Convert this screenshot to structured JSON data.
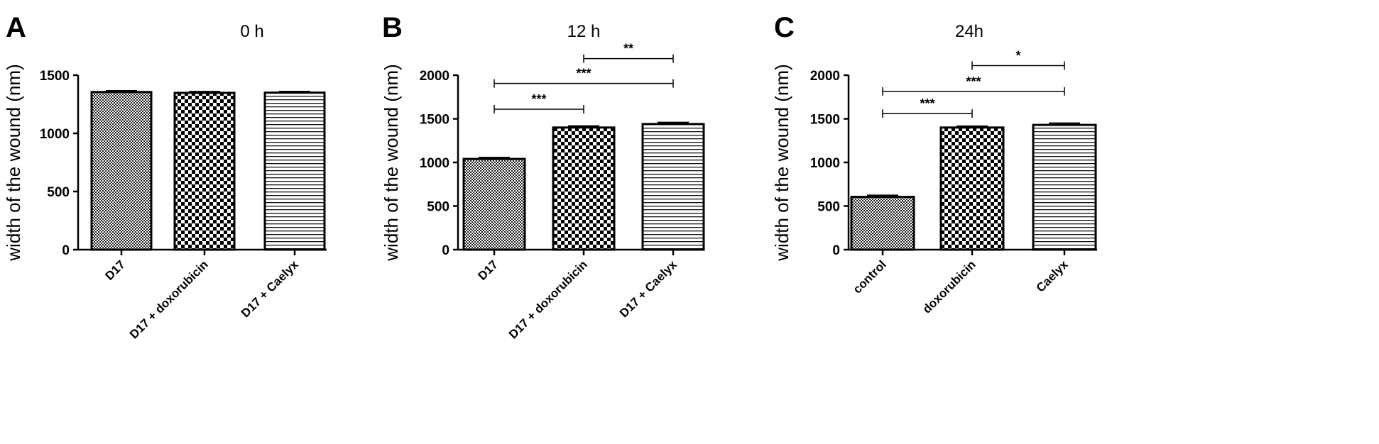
{
  "chart_data": [
    {
      "type": "bar",
      "panel": "A",
      "title": "0 h",
      "ylabel": "width of the wound (nm)",
      "ylim": [
        0,
        1500
      ],
      "yticks": [
        "0",
        "500",
        "1000",
        "1500"
      ],
      "categories": [
        "D17",
        "D17 + doxorubicin",
        "D17 + Caelyx"
      ],
      "values": [
        1355,
        1348,
        1350
      ],
      "errors": [
        5,
        5,
        4
      ],
      "patterns": [
        "fine-check",
        "checker",
        "hlines"
      ],
      "significance": []
    },
    {
      "type": "bar",
      "panel": "B",
      "title": "12 h",
      "ylabel": "width of the wound (nm)",
      "ylim": [
        0,
        2000
      ],
      "yticks": [
        "0",
        "500",
        "1000",
        "1500",
        "2000"
      ],
      "categories": [
        "D17",
        "D17 + doxorubicin",
        "D17 + Caelyx"
      ],
      "values": [
        1040,
        1400,
        1440
      ],
      "errors": [
        8,
        10,
        10
      ],
      "patterns": [
        "fine-check",
        "checker",
        "hlines"
      ],
      "significance": [
        {
          "from": 0,
          "to": 1,
          "y": 1610,
          "label": "***"
        },
        {
          "from": 0,
          "to": 2,
          "y": 1905,
          "label": "***"
        },
        {
          "from": 1,
          "to": 2,
          "y": 2190,
          "label": "**"
        }
      ]
    },
    {
      "type": "bar",
      "panel": "C",
      "title": "24h",
      "ylabel": "width of the wound (nm)",
      "ylim": [
        0,
        2000
      ],
      "yticks": [
        "0",
        "500",
        "1000",
        "1500",
        "2000"
      ],
      "categories": [
        "control",
        "doxorubicin",
        "Caelyx"
      ],
      "values": [
        605,
        1400,
        1430
      ],
      "errors": [
        10,
        8,
        12
      ],
      "patterns": [
        "fine-check",
        "checker",
        "hlines"
      ],
      "significance": [
        {
          "from": 0,
          "to": 1,
          "y": 1560,
          "label": "***"
        },
        {
          "from": 0,
          "to": 2,
          "y": 1815,
          "label": "***"
        },
        {
          "from": 1,
          "to": 2,
          "y": 2110,
          "label": "*"
        }
      ]
    }
  ]
}
